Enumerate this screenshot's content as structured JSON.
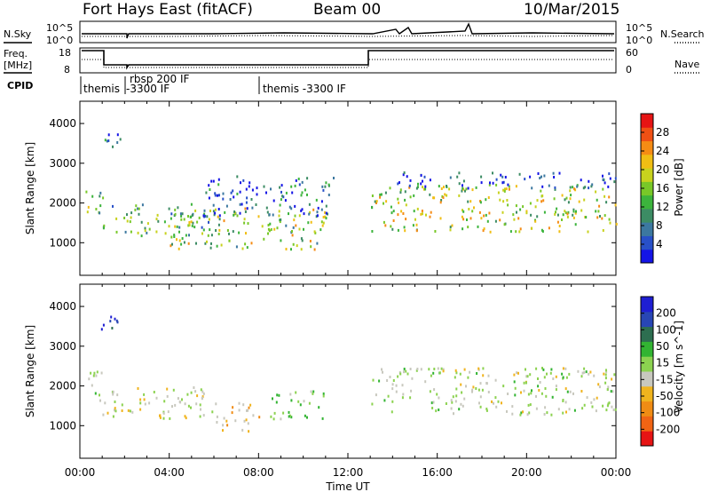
{
  "header": {
    "site": "Fort Hays East (fitACF)",
    "beam": "Beam 00",
    "date": "10/Mar/2015"
  },
  "side_labels": {
    "nsky": "N.Sky",
    "nsearch": "N.Search",
    "freq": "Freq.",
    "freq_unit": "[MHz]",
    "nave": "Nave",
    "cpid": "CPID"
  },
  "noise_axis": {
    "left_ticks": [
      "10^5",
      "10^0"
    ],
    "right_ticks": [
      "10^5",
      "10^0"
    ]
  },
  "freq_axis": {
    "left_ticks": [
      "18",
      "8"
    ],
    "right_ticks": [
      "60",
      "0"
    ]
  },
  "cpid_labels": [
    {
      "text": "themis",
      "time_h": 0.1
    },
    {
      "text": "rbsp 200 IF",
      "time_h": 2.0
    },
    {
      "text": "-3300 IF",
      "time_h": 2.0
    },
    {
      "text": "themis -3300 IF",
      "time_h": 8.0
    }
  ],
  "time_axis": {
    "label": "Time UT",
    "ticks": [
      "00:00",
      "04:00",
      "08:00",
      "12:00",
      "16:00",
      "20:00",
      "00:00"
    ],
    "range_h": [
      0,
      24
    ]
  },
  "colors": {
    "power": [
      "#1414e6",
      "#2850c8",
      "#3c78a0",
      "#3c8c64",
      "#3cb43c",
      "#78c828",
      "#c8d21e",
      "#f0be14",
      "#f58c14",
      "#f05014",
      "#e61414"
    ],
    "velocity": [
      "#1e1ed2",
      "#2846b4",
      "#2d6e50",
      "#32b432",
      "#8cd250",
      "#c8c8be",
      "#f0b41e",
      "#f08c14",
      "#f06414",
      "#e61414"
    ]
  },
  "chart_data": [
    {
      "type": "heatmap",
      "name": "power",
      "ylabel": "Slant Range [km]",
      "xlabel": "",
      "ylim": [
        180,
        4560
      ],
      "xlim": [
        0,
        24
      ],
      "yticks": [
        1000,
        2000,
        3000,
        4000
      ],
      "colorbar": {
        "label": "Power [dB]",
        "ticks": [
          4,
          8,
          12,
          16,
          20,
          24,
          28
        ],
        "range": [
          0,
          32
        ]
      },
      "regions": [
        {
          "t0": 0.1,
          "t1": 1.0,
          "r0": 1650,
          "r1": 2400,
          "value": 14
        },
        {
          "t0": 0.9,
          "t1": 1.8,
          "r0": 3400,
          "r1": 3900,
          "value": 6
        },
        {
          "t0": 1.0,
          "t1": 6.0,
          "r0": 1200,
          "r1": 2000,
          "value": 12
        },
        {
          "t0": 4.0,
          "t1": 11.0,
          "r0": 850,
          "r1": 1900,
          "value": 16
        },
        {
          "t0": 5.5,
          "t1": 11.5,
          "r0": 1700,
          "r1": 2700,
          "value": 6
        },
        {
          "t0": 13.0,
          "t1": 24.0,
          "r0": 1300,
          "r1": 2500,
          "value": 18
        },
        {
          "t0": 14.0,
          "t1": 24.0,
          "r0": 2400,
          "r1": 2800,
          "value": 5
        }
      ]
    },
    {
      "type": "heatmap",
      "name": "velocity",
      "ylabel": "Slant Range [km]",
      "xlabel": "Time UT",
      "ylim": [
        180,
        4560
      ],
      "xlim": [
        0,
        24
      ],
      "yticks": [
        1000,
        2000,
        3000,
        4000
      ],
      "colorbar": {
        "label": "Velocity [m s^-1]",
        "ticks": [
          200,
          100,
          50,
          15,
          -15,
          -50,
          -100,
          -200
        ],
        "range": [
          -250,
          250
        ]
      },
      "regions": [
        {
          "t0": 0.1,
          "t1": 1.0,
          "r0": 1650,
          "r1": 2400,
          "value": 0
        },
        {
          "t0": 0.9,
          "t1": 1.8,
          "r0": 3400,
          "r1": 3900,
          "value": 180
        },
        {
          "t0": 1.0,
          "t1": 6.0,
          "r0": 1200,
          "r1": 2000,
          "value": -10
        },
        {
          "t0": 6.0,
          "t1": 8.0,
          "r0": 850,
          "r1": 1600,
          "value": -60
        },
        {
          "t0": 8.5,
          "t1": 11.0,
          "r0": 1200,
          "r1": 1900,
          "value": 40
        },
        {
          "t0": 13.0,
          "t1": 24.0,
          "r0": 1300,
          "r1": 2500,
          "value": 0
        }
      ]
    }
  ]
}
